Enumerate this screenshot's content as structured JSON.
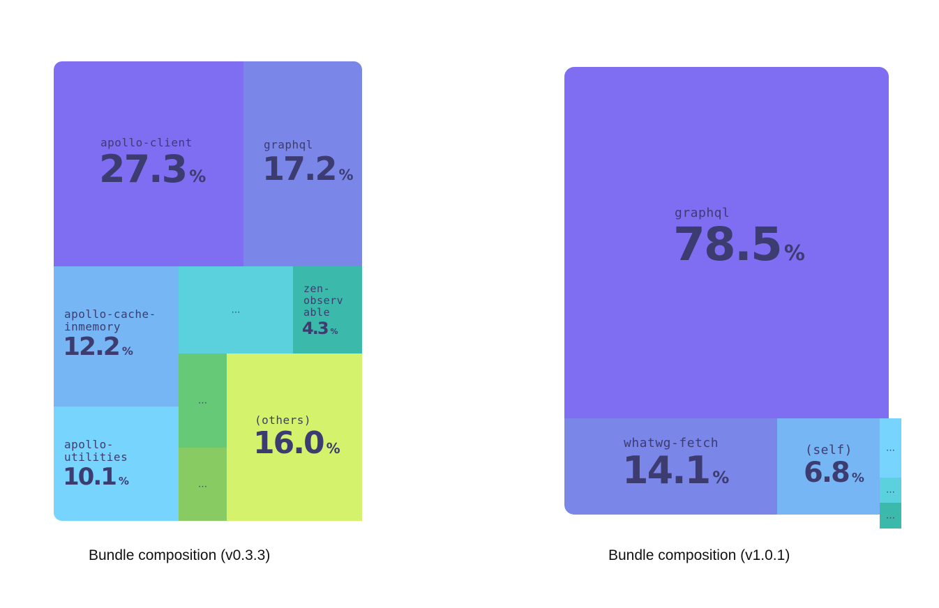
{
  "chart_data": [
    {
      "type": "treemap",
      "caption": "Bundle composition (v0.3.3)",
      "items": [
        {
          "name": "apollo-client",
          "label": "apollo-client",
          "value": 27.3,
          "pct_text": "27.3",
          "unit": "%",
          "color": "#7f6ef2"
        },
        {
          "name": "graphql",
          "label": "graphql",
          "value": 17.2,
          "pct_text": "17.2",
          "unit": "%",
          "color": "#7a86e8"
        },
        {
          "name": "apollo-cache-inmemory",
          "label": "apollo-cache-\ninmemory",
          "value": 12.2,
          "pct_text": "12.2",
          "unit": "%",
          "color": "#77b6f5"
        },
        {
          "name": "unlabeled-1",
          "label": "…",
          "value": null,
          "color": "#5bd1de"
        },
        {
          "name": "zen-observable",
          "label": "zen-\nobserv\nable",
          "value": 4.3,
          "pct_text": "4.3",
          "unit": "%",
          "color": "#3bb9ab"
        },
        {
          "name": "apollo-utilities",
          "label": "apollo-\nutilities",
          "value": 10.1,
          "pct_text": "10.1",
          "unit": "%",
          "color": "#77d4fc"
        },
        {
          "name": "unlabeled-2",
          "label": "…",
          "value": null,
          "color": "#66c977"
        },
        {
          "name": "unlabeled-3",
          "label": "…",
          "value": null,
          "color": "#89cb63"
        },
        {
          "name": "(others)",
          "label": "(others)",
          "value": 16.0,
          "pct_text": "16.0",
          "unit": "%",
          "color": "#d4f26b"
        }
      ]
    },
    {
      "type": "treemap",
      "caption": "Bundle composition (v1.0.1)",
      "items": [
        {
          "name": "graphql",
          "label": "graphql",
          "value": 78.5,
          "pct_text": "78.5",
          "unit": "%",
          "color": "#7f6ef2"
        },
        {
          "name": "whatwg-fetch",
          "label": "whatwg-fetch",
          "value": 14.1,
          "pct_text": "14.1",
          "unit": "%",
          "color": "#7a86e8"
        },
        {
          "name": "(self)",
          "label": "(self)",
          "value": 6.8,
          "pct_text": "6.8",
          "unit": "%",
          "color": "#77b6f5"
        },
        {
          "name": "unlabeled-1",
          "label": "…",
          "value": null,
          "color": "#77d4fc"
        },
        {
          "name": "unlabeled-2",
          "label": "…",
          "value": null,
          "color": "#5bd1de"
        },
        {
          "name": "unlabeled-3",
          "label": "…",
          "value": null,
          "color": "#3bb9ab"
        }
      ]
    }
  ]
}
